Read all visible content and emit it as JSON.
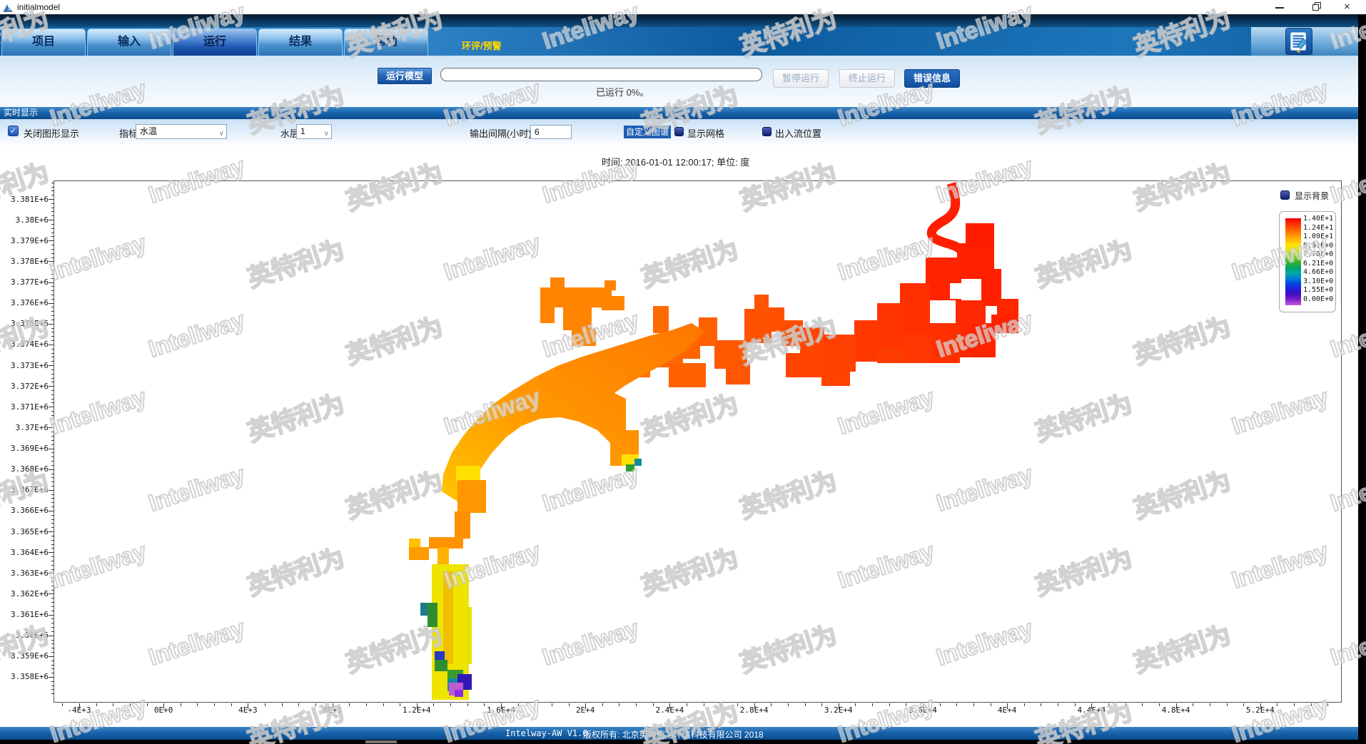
{
  "window": {
    "title": "initialmodel"
  },
  "menu": {
    "tabs": [
      "项目",
      "输入",
      "运行",
      "结果",
      "帮助"
    ],
    "active_tab": "运行",
    "highlight_label": "环评/预警"
  },
  "toolbar": {
    "run_button_label": "运行模型",
    "progress_percent": 0,
    "progress_text": "已运行 0%。",
    "pause_button_label": "暂停运行",
    "stop_button_label": "终止运行",
    "error_button_label": "错误信息"
  },
  "realtime": {
    "section_title": "实时显示",
    "close_graph_label": "关闭图形显示",
    "close_graph_checked": true,
    "check_glyph": "✓",
    "indicator_label": "指标",
    "indicator_value": "水温",
    "layer_label": "水层",
    "layer_value": "1",
    "interval_label": "输出间隔(小时)",
    "interval_value": "6",
    "custom_colormap_label": "自定义图谱",
    "show_grid_label": "显示网格",
    "inout_flow_label": "出入流位置",
    "dropdown_chevron": "∨"
  },
  "chart": {
    "type_hint": "heatmap",
    "time_caption": "时间: 2016-01-01 12:00:17; 单位: 度",
    "background_toggle_label": "显示背景",
    "legend_values": [
      "1.40E+1",
      "1.24E+1",
      "1.09E+1",
      "9.31E+0",
      "7.76E+0",
      "6.21E+0",
      "4.66E+0",
      "3.10E+0",
      "1.55E+0",
      "0.00E+0"
    ],
    "y_ticks": [
      "3.381E+6",
      "3.38E+6",
      "3.379E+6",
      "3.378E+6",
      "3.377E+6",
      "3.376E+6",
      "3.375E+6",
      "3.374E+6",
      "3.373E+6",
      "3.372E+6",
      "3.371E+6",
      "3.37E+6",
      "3.369E+6",
      "3.368E+6",
      "3.367E+6",
      "3.366E+6",
      "3.365E+6",
      "3.364E+6",
      "3.363E+6",
      "3.362E+6",
      "3.361E+6",
      "3.36E+6",
      "3.359E+6",
      "3.358E+6"
    ],
    "x_ticks": [
      "-4E+3",
      "0E+0",
      "4E+3",
      "8E+3",
      "1.2E+4",
      "1.6E+4",
      "2E+4",
      "2.4E+4",
      "2.8E+4",
      "3.2E+4",
      "3.6E+4",
      "4E+4",
      "4.4E+4",
      "4.8E+4",
      "5.2E+4"
    ]
  },
  "statusbar": {
    "version": "Intelway-AW  V1.0",
    "copyright": "版权所有: 北京英特利为环境科技有限公司 2018"
  },
  "watermark": {
    "texts": [
      "英特利为",
      "Inteliway"
    ]
  },
  "colors": {
    "highlight_yellow": "#ffd700",
    "accent_blue": "#1e5fb4",
    "legend_top": "#ff0000",
    "legend_bottom": "#c060dc"
  }
}
